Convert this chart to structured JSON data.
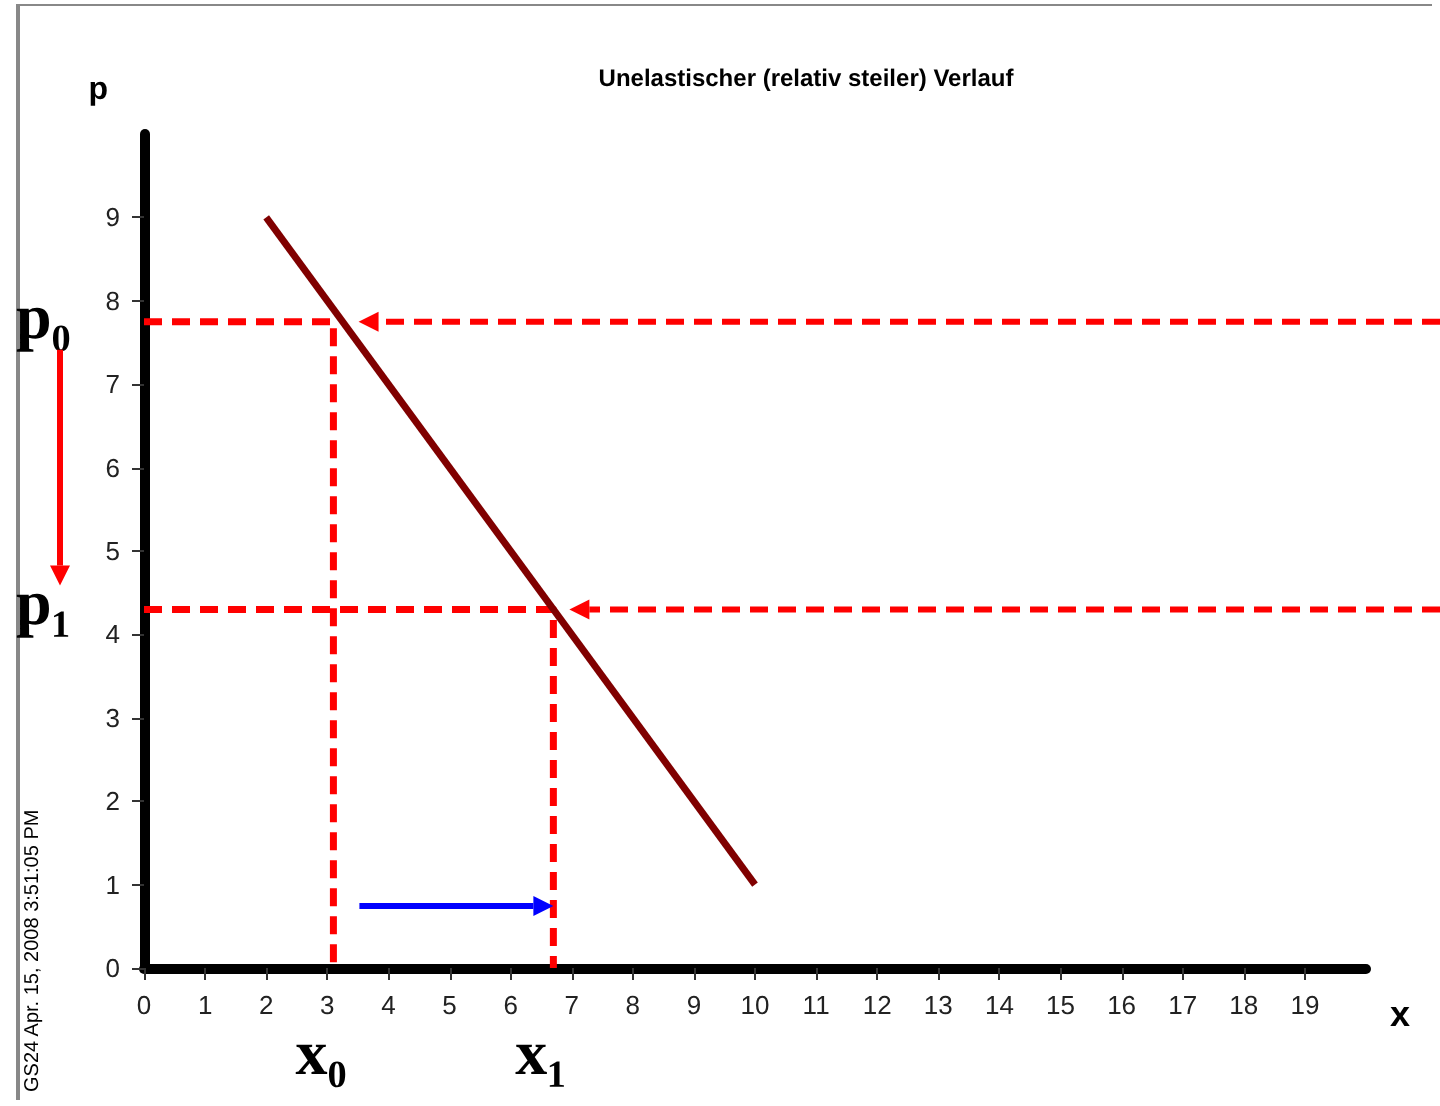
{
  "chart_data": {
    "type": "line",
    "title": "Unelastischer (relativ steiler) Verlauf",
    "xlabel": "x",
    "ylabel": "p",
    "xlim": [
      0,
      20
    ],
    "ylim": [
      0,
      10
    ],
    "xticks": [
      0,
      1,
      2,
      3,
      4,
      5,
      6,
      7,
      8,
      9,
      10,
      11,
      12,
      13,
      14,
      15,
      16,
      17,
      18,
      19
    ],
    "yticks": [
      0,
      1,
      2,
      3,
      4,
      5,
      6,
      7,
      8,
      9
    ],
    "grid": false,
    "marker": "none",
    "series": [
      {
        "color": "#800000",
        "x": [
          2,
          10
        ],
        "values": [
          9,
          1
        ],
        "line_style": "solid"
      },
      {
        "color": "#ff0000",
        "x": [
          0,
          3.1,
          3.1
        ],
        "values": [
          7.75,
          7.75,
          0
        ],
        "line_style": "dashed"
      },
      {
        "color": "#ff0000",
        "x": [
          0,
          6.7,
          6.7
        ],
        "values": [
          4.3,
          4.3,
          0
        ],
        "line_style": "dashed"
      }
    ],
    "annotations": [
      {
        "text": "p₀",
        "x": 0,
        "y": 7.75
      },
      {
        "text": "p₁",
        "x": 0,
        "y": 4.3
      },
      {
        "text": "x₀",
        "x": 3.1,
        "y": 0
      },
      {
        "text": "x₁",
        "x": 6.7,
        "y": 0
      },
      "GS24  Apr. 15, 2008   3:51:05 PM"
    ]
  }
}
